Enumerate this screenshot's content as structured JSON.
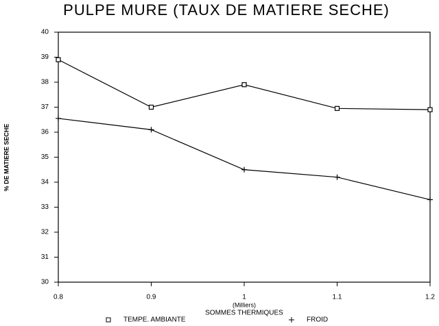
{
  "chart_data": {
    "type": "line",
    "title": "PULPE MURE (TAUX DE MATIERE SECHE)",
    "y_label": "% DE MATIERE SECHE",
    "x_label": "SOMMES THERMIQUES",
    "x_unit_label": "(Milliers)",
    "x": [
      0.8,
      0.9,
      1,
      1.1,
      1.2
    ],
    "series": [
      {
        "name": "TEMPE. AMBIANTE",
        "color": "#000000",
        "marker": "square",
        "values": [
          38.9,
          37.0,
          37.9,
          36.95,
          36.9
        ]
      },
      {
        "name": "FROID",
        "color": "#000000",
        "marker": "plus",
        "values": [
          36.55,
          36.1,
          34.5,
          34.2,
          33.3
        ]
      }
    ],
    "xlim": [
      0.8,
      1.2
    ],
    "xticks": [
      0.8,
      0.9,
      1,
      1.1,
      1.2
    ],
    "ylim": [
      30,
      40
    ],
    "yticks": [
      30,
      31,
      32,
      33,
      34,
      35,
      36,
      37,
      38,
      39,
      40
    ],
    "grid": false
  }
}
